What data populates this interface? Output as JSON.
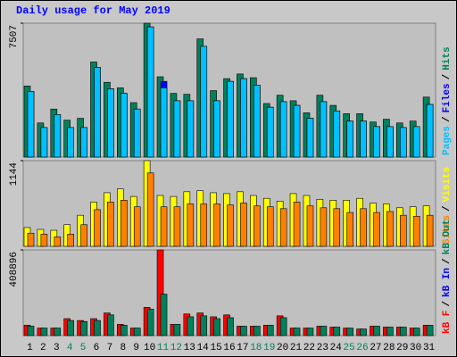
{
  "title": "Daily usage for May 2019",
  "chart_data": [
    {
      "type": "bar",
      "ylim": [
        0,
        7507
      ],
      "yticks": [
        7507
      ],
      "legend_reversed": true,
      "series": [
        {
          "name": "Hits",
          "color": "#00805c",
          "values": [
            3986,
            1915,
            2692,
            2071,
            2174,
            5333,
            4193,
            3883,
            3054,
            7507,
            4504,
            3572,
            3520,
            6627,
            3727,
            4400,
            4659,
            4452,
            3003,
            3469,
            3158,
            2485,
            3469,
            2899,
            2433,
            2433,
            1967,
            2123,
            1915,
            2019,
            3365
          ]
        },
        {
          "name": "Files",
          "color": "#0000ff",
          "values": [
            3676,
            1657,
            2381,
            1657,
            1657,
            5022,
            3831,
            3572,
            2692,
            7300,
            4245,
            3158,
            3158,
            6212,
            3158,
            4245,
            4400,
            4038,
            2796,
            3106,
            2899,
            2174,
            3106,
            2589,
            2019,
            2019,
            1708,
            1708,
            1657,
            1708,
            2951
          ]
        },
        {
          "name": "Pages",
          "color": "#00c0ff",
          "values": [
            3676,
            1657,
            2381,
            1657,
            1657,
            5022,
            3831,
            3572,
            2692,
            7300,
            3883,
            3158,
            3158,
            6212,
            3158,
            4245,
            4400,
            4038,
            2796,
            3106,
            2899,
            2174,
            3106,
            2589,
            2019,
            2019,
            1708,
            1708,
            1657,
            1708,
            2951
          ]
        }
      ]
    },
    {
      "type": "bar",
      "ylim": [
        0,
        1144
      ],
      "yticks": [
        1144
      ],
      "legend_reversed": true,
      "series": [
        {
          "name": "Visits",
          "color": "#ffff00",
          "values": [
            251,
            226,
            214,
            289,
            415,
            591,
            716,
            767,
            666,
            1144,
            679,
            666,
            729,
            742,
            716,
            704,
            729,
            679,
            641,
            603,
            704,
            679,
            628,
            616,
            616,
            641,
            578,
            566,
            515,
            528,
            540
          ]
        },
        {
          "name": "Sites",
          "color": "#ff8000",
          "values": [
            176,
            163,
            126,
            163,
            289,
            490,
            591,
            616,
            528,
            980,
            528,
            528,
            566,
            566,
            566,
            553,
            578,
            540,
            528,
            503,
            591,
            540,
            515,
            503,
            452,
            503,
            452,
            465,
            415,
            402,
            415
          ]
        }
      ]
    },
    {
      "type": "bar",
      "ylim": [
        0,
        408896
      ],
      "yticks": [
        408896
      ],
      "legend_reversed": false,
      "categories": [
        1,
        2,
        3,
        4,
        5,
        6,
        7,
        8,
        9,
        10,
        11,
        12,
        13,
        14,
        15,
        16,
        17,
        18,
        19,
        20,
        21,
        22,
        23,
        24,
        25,
        26,
        27,
        28,
        29,
        30,
        31
      ],
      "weekend": [
        4,
        5,
        11,
        12,
        18,
        19,
        25,
        26
      ],
      "weekend_color": "#00805c",
      "series": [
        {
          "name": "kB F",
          "color": "#ff0000",
          "values": [
            49423,
            35944,
            35944,
            80874,
            71888,
            80874,
            107832,
            53916,
            35944,
            134790,
            408896,
            53916,
            103339,
            107832,
            89860,
            98846,
            44930,
            44930,
            49423,
            94353,
            35944,
            35944,
            44930,
            40437,
            35944,
            31451,
            44930,
            40437,
            40437,
            35944,
            49423
          ]
        },
        {
          "name": "kB In",
          "color": "#0000ff",
          "values": [
            0,
            0,
            0,
            0,
            0,
            0,
            0,
            0,
            0,
            0,
            0,
            0,
            0,
            0,
            0,
            0,
            0,
            0,
            0,
            0,
            0,
            0,
            0,
            0,
            0,
            0,
            0,
            0,
            0,
            0,
            0
          ]
        },
        {
          "name": "kB Out",
          "color": "#00805c",
          "values": [
            44930,
            35944,
            35944,
            71888,
            67395,
            71888,
            98846,
            49423,
            35944,
            125804,
            197692,
            53916,
            89860,
            94353,
            80874,
            85367,
            44930,
            44930,
            49423,
            85367,
            35944,
            35944,
            44930,
            40437,
            35944,
            31451,
            44930,
            40437,
            40437,
            35944,
            49423
          ]
        }
      ]
    }
  ],
  "legend_separator": "/"
}
